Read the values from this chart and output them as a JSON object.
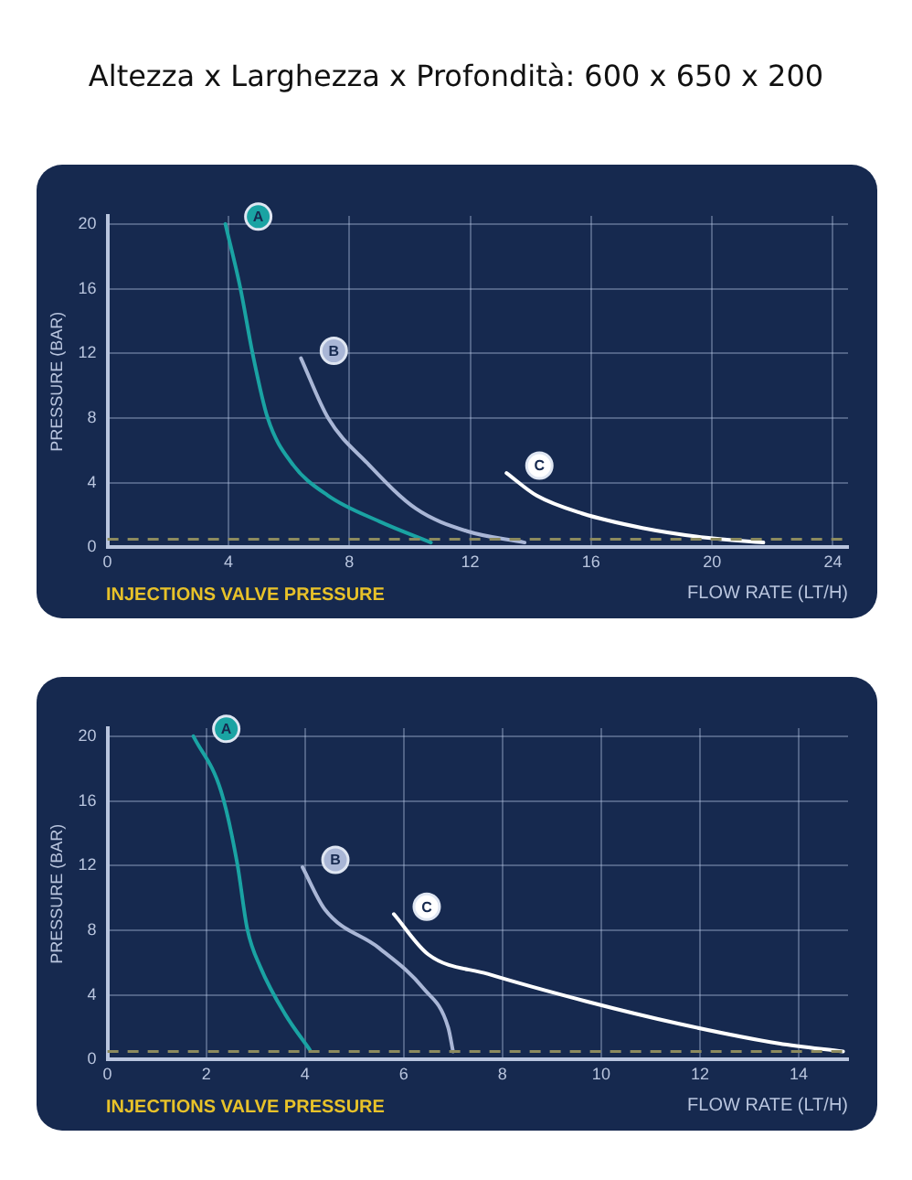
{
  "chart_data": [
    {
      "type": "line",
      "title": "Altezza x Larghezza x Profondità: 600 x 650 x 200",
      "xlabel": "FLOW RATE (LT/H)",
      "ylabel": "PRESSURE (BAR)",
      "xlim": [
        0,
        24.5
      ],
      "xticks": [
        0,
        4,
        8,
        12,
        16,
        20,
        24
      ],
      "ylim": [
        0,
        20.5
      ],
      "yticks": [
        0,
        4,
        8,
        12,
        16,
        20
      ],
      "grid": true,
      "legend": false,
      "marker": "none",
      "line_style": "solid",
      "ref_lines": [
        {
          "axis": "y",
          "value": 0.5,
          "label": "INJECTIONS VALVE PRESSURE",
          "color": "#8c8a5e",
          "line_style": "dashed"
        }
      ],
      "series": [
        {
          "name": "A",
          "color": "#1aa3a3",
          "x": [
            3.9,
            4.4,
            4.8,
            5.3,
            6.1,
            7.3,
            9,
            10.7
          ],
          "values": [
            20,
            16,
            12,
            8,
            5.2,
            3.2,
            1.6,
            0.3
          ]
        },
        {
          "name": "B",
          "color": "#a9b6d6",
          "x": [
            6.4,
            7.3,
            8.6,
            10.2,
            11.9,
            13.8
          ],
          "values": [
            11.7,
            8,
            5.2,
            2.4,
            1,
            0.3
          ]
        },
        {
          "name": "C",
          "color": "#ffffff",
          "x": [
            13.2,
            14.2,
            15.7,
            17.7,
            19.8,
            21.7
          ],
          "values": [
            4.6,
            3.2,
            2.1,
            1.2,
            0.6,
            0.3
          ]
        }
      ]
    },
    {
      "type": "line",
      "xlabel": "FLOW RATE (LT/H)",
      "ylabel": "PRESSURE (BAR)",
      "xlim": [
        0,
        15
      ],
      "xticks": [
        0,
        2,
        4,
        6,
        8,
        10,
        12,
        14
      ],
      "ylim": [
        0,
        20.5
      ],
      "yticks": [
        0,
        4,
        8,
        12,
        16,
        20
      ],
      "grid": true,
      "legend": false,
      "marker": "none",
      "line_style": "solid",
      "ref_lines": [
        {
          "axis": "y",
          "value": 0.5,
          "label": "INJECTIONS VALVE PRESSURE",
          "color": "#8c8a5e",
          "line_style": "dashed"
        }
      ],
      "series": [
        {
          "name": "A",
          "color": "#1aa3a3",
          "x": [
            1.74,
            2.3,
            2.63,
            2.83,
            3.1,
            3.6,
            4.1
          ],
          "values": [
            20,
            16.6,
            12.1,
            8.1,
            5.7,
            2.8,
            0.6
          ]
        },
        {
          "name": "B",
          "color": "#a9b6d6",
          "x": [
            3.95,
            4.4,
            5.5,
            6.4,
            6.9,
            7
          ],
          "values": [
            11.9,
            9.3,
            6.9,
            4.4,
            2,
            0.5
          ]
        },
        {
          "name": "C",
          "color": "#ffffff",
          "x": [
            5.8,
            6.5,
            7.7,
            9.7,
            11.6,
            13.6,
            14.9
          ],
          "values": [
            9,
            6.5,
            5.3,
            3.6,
            2.2,
            1,
            0.5
          ]
        }
      ]
    }
  ]
}
